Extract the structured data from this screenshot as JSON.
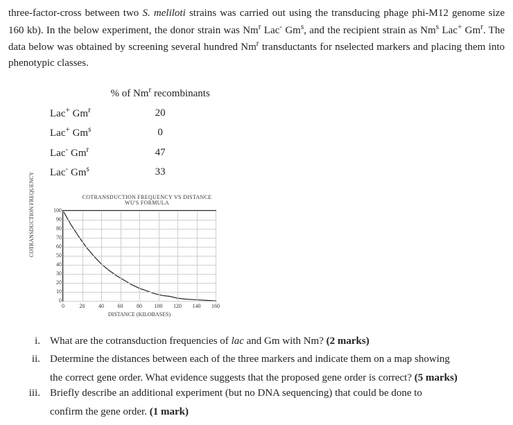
{
  "intro_html": "three-factor-cross between two <span class='italic'>S. meliloti</span> strains was carried out using the transducing phage phi-M12 genome size 160 kb). In the below experiment, the donor strain was Nm<sup>r</sup> Lac<sup>-</sup> Gm<sup>s</sup>, and the recipient strain as Nm<sup>s</sup> Lac<sup>+</sup> Gm<sup>r</sup>. The data below was obtained by screening several hundred Nm<sup>r</sup> transductants for nselected markers and placing them into phenotypic classes.",
  "table": {
    "header_col2_html": "% of Nm<sup>r</sup> recombinants",
    "rows": [
      {
        "cls_html": "Lac<sup>+</sup> Gm<sup>r</sup>",
        "val": "20"
      },
      {
        "cls_html": "Lac<sup>+</sup> Gm<sup>s</sup>",
        "val": "0"
      },
      {
        "cls_html": "Lac<sup>-</sup> Gm<sup>r</sup>",
        "val": "47"
      },
      {
        "cls_html": "Lac<sup>-</sup> Gm<sup>s</sup>",
        "val": "33"
      }
    ]
  },
  "chart": {
    "title_line1": "COTRANSDUCTION FREQUENCY VS DISTANCE",
    "title_line2": "WU'S FORMULA",
    "ylabel": "COTRANSDUCTION FREQUENCY",
    "xlabel": "DISTANCE (KILOBASES)",
    "xlim": [
      0,
      160
    ],
    "ylim": [
      0,
      100
    ],
    "xticks": [
      0,
      20,
      40,
      60,
      80,
      100,
      120,
      140,
      160
    ],
    "yticks": [
      0,
      10,
      20,
      30,
      40,
      50,
      60,
      70,
      80,
      90,
      100
    ],
    "curve_points": [
      [
        0,
        100
      ],
      [
        8,
        85
      ],
      [
        16,
        72
      ],
      [
        24,
        60
      ],
      [
        32,
        50
      ],
      [
        40,
        41
      ],
      [
        48,
        34
      ],
      [
        56,
        28
      ],
      [
        64,
        23
      ],
      [
        72,
        18
      ],
      [
        80,
        14
      ],
      [
        88,
        11
      ],
      [
        96,
        8
      ],
      [
        104,
        6
      ],
      [
        112,
        5
      ],
      [
        120,
        3
      ],
      [
        128,
        2
      ],
      [
        136,
        1.5
      ],
      [
        144,
        1
      ],
      [
        152,
        0.5
      ],
      [
        160,
        0
      ]
    ],
    "line_color": "#222",
    "grid_color": "#cfcfcf",
    "bg_color": "#ffffff"
  },
  "questions": [
    {
      "num": "i.",
      "body_html": "What are the cotransduction frequencies of <span class='italic'>lac</span> and Gm with Nm? <b>(2 marks)</b>"
    },
    {
      "num": "ii.",
      "body_html": "Determine the distances between each of the three markers and indicate them on a map showing",
      "cont_html": "the correct gene order. What evidence suggests that the proposed gene order is correct? <b>(5 marks)</b>"
    },
    {
      "num": "iii.",
      "body_html": "Briefly describe an additional experiment (but no DNA sequencing) that could be done to",
      "cont_html": "confirm the gene order. <b>(1 mark)</b>"
    }
  ]
}
